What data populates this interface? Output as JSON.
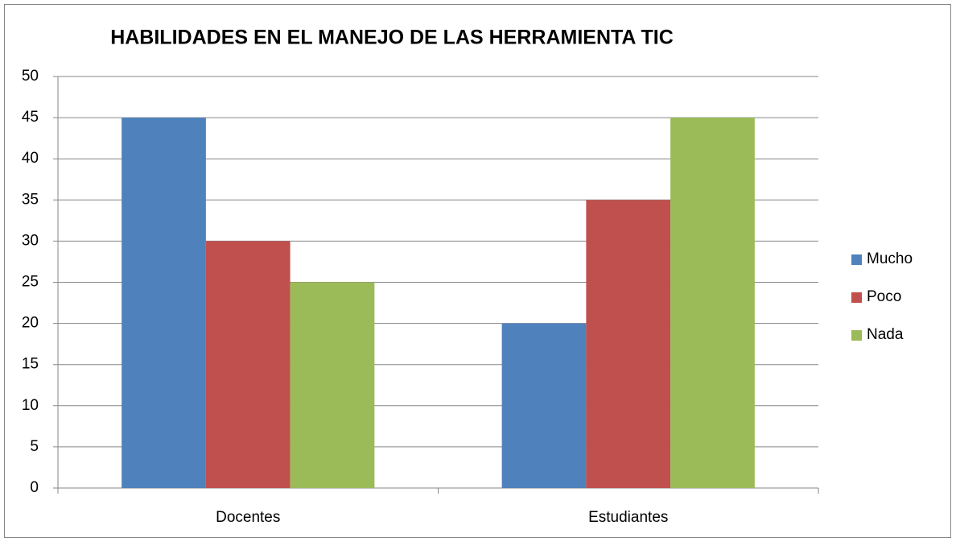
{
  "chart_data": {
    "type": "bar",
    "title": "HABILIDADES EN EL MANEJO DE LAS HERRAMIENTA TIC",
    "categories": [
      "Docentes",
      "Estudiantes"
    ],
    "series": [
      {
        "name": "Mucho",
        "color": "#4f81bd",
        "values": [
          45,
          20
        ]
      },
      {
        "name": "Poco",
        "color": "#c0504d",
        "values": [
          30,
          35
        ]
      },
      {
        "name": "Nada",
        "color": "#9bbb59",
        "values": [
          25,
          45
        ]
      }
    ],
    "ylim": [
      0,
      50
    ],
    "yticks": [
      0,
      5,
      10,
      15,
      20,
      25,
      30,
      35,
      40,
      45,
      50
    ],
    "grid": true,
    "legend": "right"
  }
}
